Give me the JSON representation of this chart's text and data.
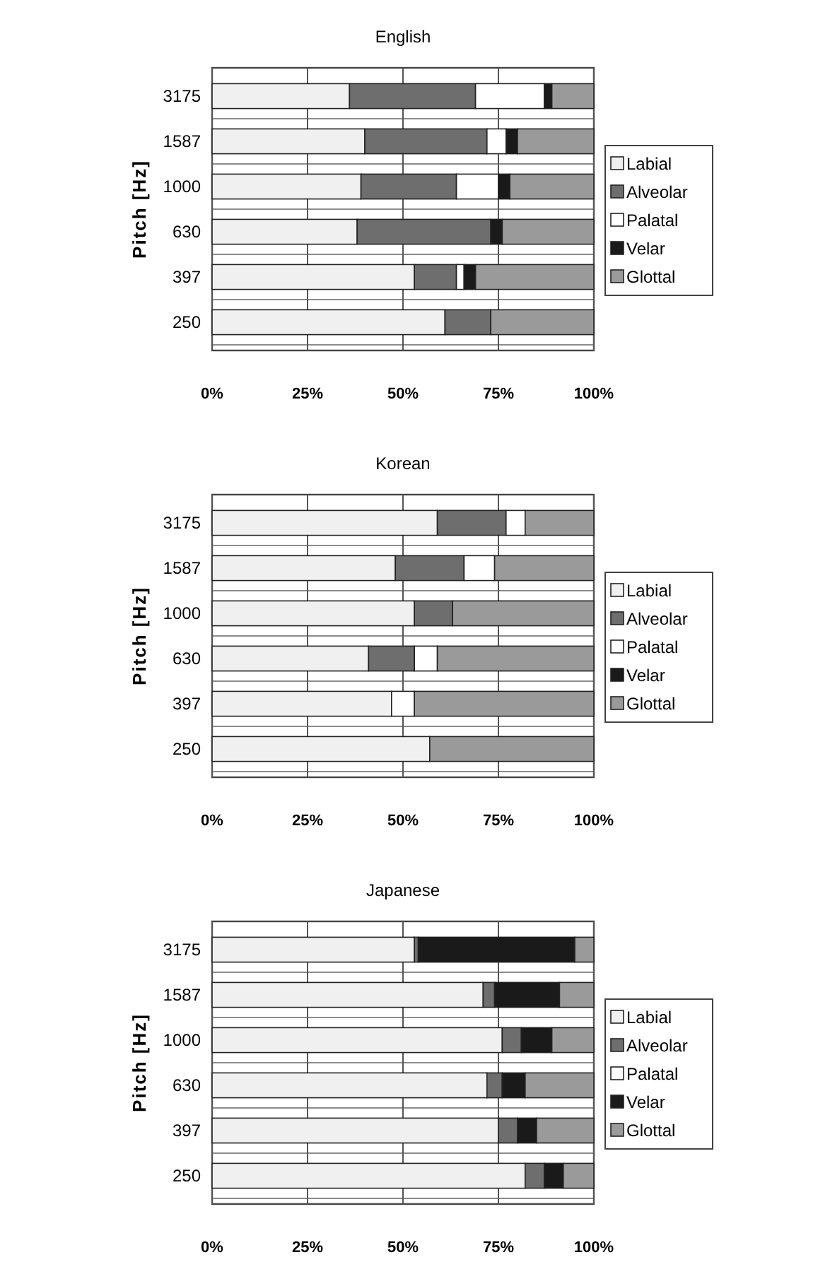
{
  "chart_data": [
    {
      "type": "bar",
      "orientation": "horizontal",
      "stacked": true,
      "title": "English",
      "ylabel": "Pitch [Hz]",
      "categories": [
        "3175",
        "1587",
        "1000",
        "630",
        "397",
        "250"
      ],
      "xlim": [
        0,
        100
      ],
      "xticks": [
        {
          "value": 0,
          "label": "0%"
        },
        {
          "value": 25,
          "label": "25%"
        },
        {
          "value": 50,
          "label": "50%"
        },
        {
          "value": 75,
          "label": "75%"
        },
        {
          "value": 100,
          "label": "100%"
        }
      ],
      "grid": "x",
      "legend": "right",
      "series": [
        {
          "name": "Labial",
          "color": "#f0f0f0",
          "values": [
            36,
            40,
            39,
            38,
            53,
            61
          ]
        },
        {
          "name": "Alveolar",
          "color": "#6e6e6e",
          "values": [
            33,
            32,
            25,
            35,
            11,
            12
          ]
        },
        {
          "name": "Palatal",
          "color": "#ffffff",
          "values": [
            18,
            5,
            11,
            0,
            2,
            0
          ]
        },
        {
          "name": "Velar",
          "color": "#1a1a1a",
          "values": [
            2,
            3,
            3,
            3,
            3,
            0
          ]
        },
        {
          "name": "Glottal",
          "color": "#9a9a9a",
          "values": [
            11,
            20,
            22,
            24,
            31,
            27
          ]
        }
      ]
    },
    {
      "type": "bar",
      "orientation": "horizontal",
      "stacked": true,
      "title": "Korean",
      "ylabel": "Pitch [Hz]",
      "categories": [
        "3175",
        "1587",
        "1000",
        "630",
        "397",
        "250"
      ],
      "xlim": [
        0,
        100
      ],
      "xticks": [
        {
          "value": 0,
          "label": "0%"
        },
        {
          "value": 25,
          "label": "25%"
        },
        {
          "value": 50,
          "label": "50%"
        },
        {
          "value": 75,
          "label": "75%"
        },
        {
          "value": 100,
          "label": "100%"
        }
      ],
      "grid": "x",
      "legend": "right",
      "series": [
        {
          "name": "Labial",
          "color": "#f0f0f0",
          "values": [
            59,
            48,
            53,
            41,
            47,
            57
          ]
        },
        {
          "name": "Alveolar",
          "color": "#6e6e6e",
          "values": [
            18,
            18,
            10,
            12,
            0,
            0
          ]
        },
        {
          "name": "Palatal",
          "color": "#ffffff",
          "values": [
            5,
            8,
            0,
            6,
            6,
            0
          ]
        },
        {
          "name": "Velar",
          "color": "#1a1a1a",
          "values": [
            0,
            0,
            0,
            0,
            0,
            0
          ]
        },
        {
          "name": "Glottal",
          "color": "#9a9a9a",
          "values": [
            18,
            26,
            37,
            41,
            47,
            43
          ]
        }
      ]
    },
    {
      "type": "bar",
      "orientation": "horizontal",
      "stacked": true,
      "title": "Japanese",
      "ylabel": "Pitch [Hz]",
      "categories": [
        "3175",
        "1587",
        "1000",
        "630",
        "397",
        "250"
      ],
      "xlim": [
        0,
        100
      ],
      "xticks": [
        {
          "value": 0,
          "label": "0%"
        },
        {
          "value": 25,
          "label": "25%"
        },
        {
          "value": 50,
          "label": "50%"
        },
        {
          "value": 75,
          "label": "75%"
        },
        {
          "value": 100,
          "label": "100%"
        }
      ],
      "grid": "x",
      "legend": "right",
      "series": [
        {
          "name": "Labial",
          "color": "#f0f0f0",
          "values": [
            53,
            71,
            76,
            72,
            75,
            82
          ]
        },
        {
          "name": "Alveolar",
          "color": "#6e6e6e",
          "values": [
            1,
            3,
            5,
            4,
            5,
            5
          ]
        },
        {
          "name": "Palatal",
          "color": "#ffffff",
          "values": [
            0,
            0,
            0,
            0,
            0,
            0
          ]
        },
        {
          "name": "Velar",
          "color": "#1a1a1a",
          "values": [
            41,
            17,
            8,
            6,
            5,
            5
          ]
        },
        {
          "name": "Glottal",
          "color": "#9a9a9a",
          "values": [
            5,
            9,
            11,
            18,
            15,
            8
          ]
        }
      ]
    }
  ]
}
